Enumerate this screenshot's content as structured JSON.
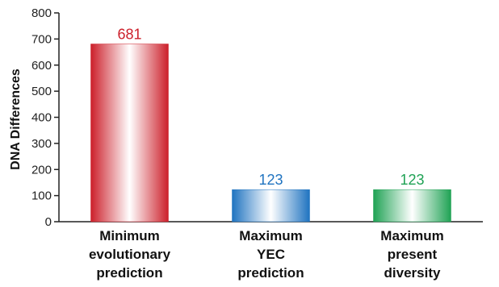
{
  "chart_data": {
    "type": "bar",
    "ylabel": "DNA Differences",
    "xlabel": "",
    "ylim": [
      0,
      800
    ],
    "yticks": [
      0,
      100,
      200,
      300,
      400,
      500,
      600,
      700,
      800
    ],
    "grid": false,
    "legend": "none",
    "categories": [
      [
        "Minimum",
        "evolutionary",
        "prediction"
      ],
      [
        "Maximum",
        "YEC",
        "prediction"
      ],
      [
        "Maximum",
        "present",
        "diversity"
      ]
    ],
    "values": [
      681,
      123,
      123
    ],
    "data_labels": [
      "681",
      "123",
      "123"
    ],
    "colors": [
      "#cc1f2a",
      "#1f73c0",
      "#1fa254"
    ]
  }
}
